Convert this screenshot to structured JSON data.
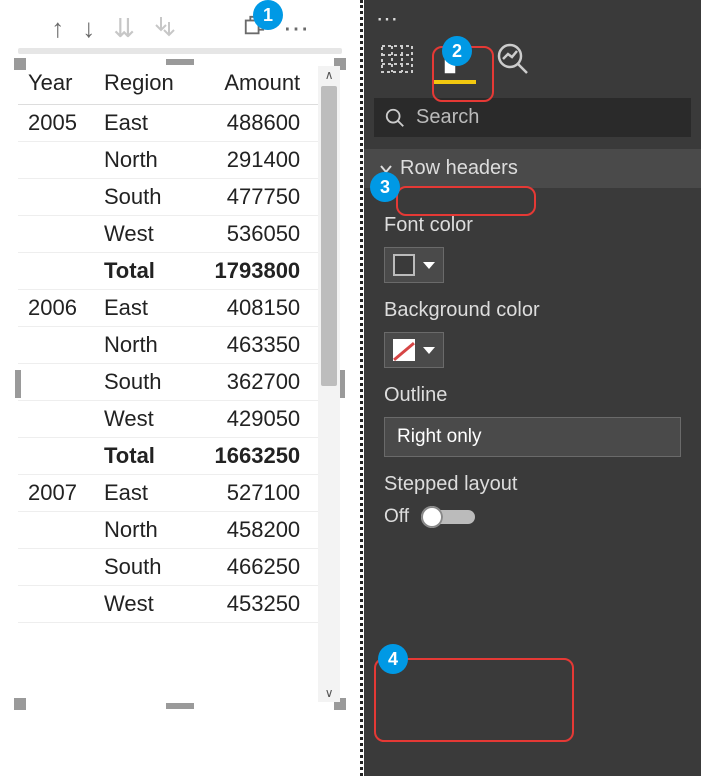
{
  "matrix": {
    "columns": [
      "Year",
      "Region",
      "Amount"
    ],
    "groups": [
      {
        "year": "2005",
        "rows": [
          {
            "region": "East",
            "amount": "488600"
          },
          {
            "region": "North",
            "amount": "291400"
          },
          {
            "region": "South",
            "amount": "477750"
          },
          {
            "region": "West",
            "amount": "536050"
          }
        ],
        "total_label": "Total",
        "total_amount": "1793800"
      },
      {
        "year": "2006",
        "rows": [
          {
            "region": "East",
            "amount": "408150"
          },
          {
            "region": "North",
            "amount": "463350"
          },
          {
            "region": "South",
            "amount": "362700"
          },
          {
            "region": "West",
            "amount": "429050"
          }
        ],
        "total_label": "Total",
        "total_amount": "1663250"
      },
      {
        "year": "2007",
        "rows": [
          {
            "region": "East",
            "amount": "527100"
          },
          {
            "region": "North",
            "amount": "458200"
          },
          {
            "region": "South",
            "amount": "466250"
          },
          {
            "region": "West",
            "amount": "453250"
          }
        ]
      }
    ]
  },
  "format_pane": {
    "search_placeholder": "Search",
    "section_title": "Row headers",
    "font_color_label": "Font color",
    "background_color_label": "Background color",
    "outline_label": "Outline",
    "outline_value": "Right only",
    "stepped_layout_label": "Stepped layout",
    "stepped_layout_state": "Off"
  },
  "callouts": {
    "c1": "1",
    "c2": "2",
    "c3": "3",
    "c4": "4"
  },
  "colors": {
    "pane_bg": "#3a3a3a",
    "accent": "#f2c80f",
    "callout": "#0099e5",
    "highlight_border": "#e53935"
  }
}
